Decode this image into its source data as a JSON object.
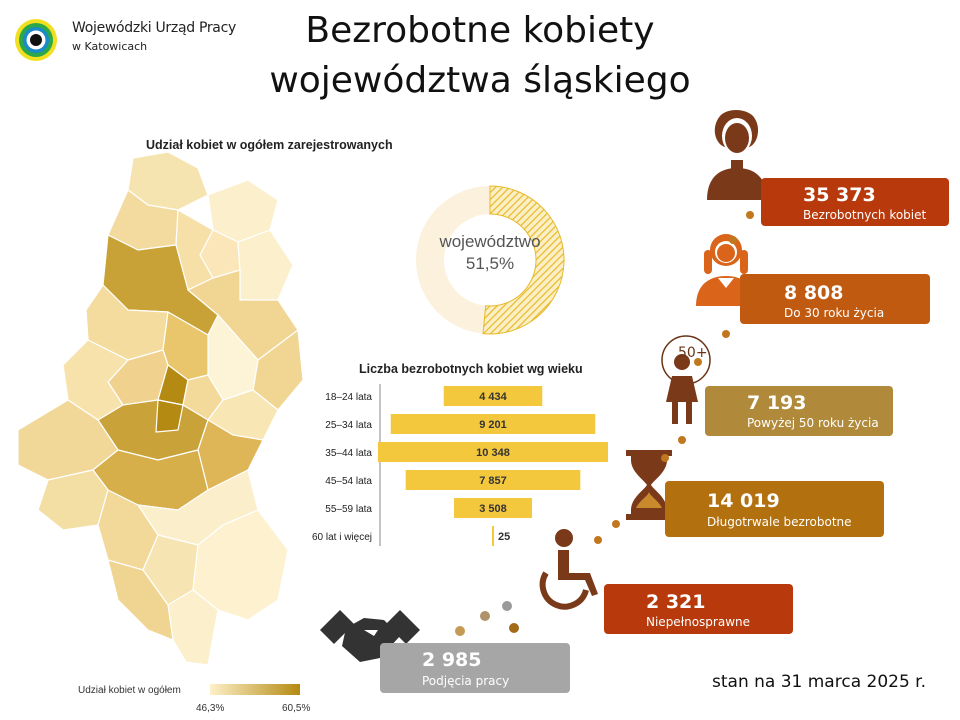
{
  "header": {
    "org_line1": "Wojewódzki Urząd Pracy",
    "org_line2": "w Katowicach",
    "title_line1": "Bezrobotne kobiety",
    "title_line2": "województwa śląskiego"
  },
  "map": {
    "title": "Udział kobiet w ogółem zarejestrowanych",
    "legend_title": "Udział kobiet w ogółem",
    "legend_min": "46,3%",
    "legend_max": "60,5%",
    "color_low": "#fdf0c8",
    "color_high": "#b58a12"
  },
  "donut": {
    "label": "województwo",
    "value_text": "51,5%",
    "value": 51.5
  },
  "chart_data": {
    "type": "bar",
    "orientation": "horizontal-centered",
    "title": "Liczba bezrobotnych kobiet wg wieku",
    "categories": [
      "18–24 lata",
      "25–34 lata",
      "35–44 lata",
      "45–54 lata",
      "55–59 lata",
      "60 lat i więcej"
    ],
    "values": [
      4434,
      9201,
      10348,
      7857,
      3508,
      25
    ],
    "value_labels": [
      "4 434",
      "9 201",
      "10 348",
      "7 857",
      "3 508",
      "25"
    ],
    "bar_color": "#f7c932"
  },
  "stats": [
    {
      "value": "35 373",
      "label": "Bezrobotnych kobiet",
      "color": "#b83a0c",
      "icon": "woman-icon"
    },
    {
      "value": "8 808",
      "label": "Do 30 roku życia",
      "color": "#c05a10",
      "icon": "young-woman-icon"
    },
    {
      "value": "7 193",
      "label": "Powyżej 50 roku życia",
      "color": "#b08a3a",
      "icon": "woman-50plus-icon"
    },
    {
      "value": "14 019",
      "label": "Długotrwale bezrobotne",
      "color": "#b2700e",
      "icon": "hourglass-icon"
    },
    {
      "value": "2 321",
      "label": "Niepełnosprawne",
      "color": "#b83a0c",
      "icon": "wheelchair-icon"
    },
    {
      "value": "2 985",
      "label": "Podjęcia pracy",
      "color": "#a6a6a6",
      "icon": "handshake-icon"
    }
  ],
  "badge_50": "50+",
  "footer": {
    "date_note": "stan na 31 marca 2025 r."
  }
}
